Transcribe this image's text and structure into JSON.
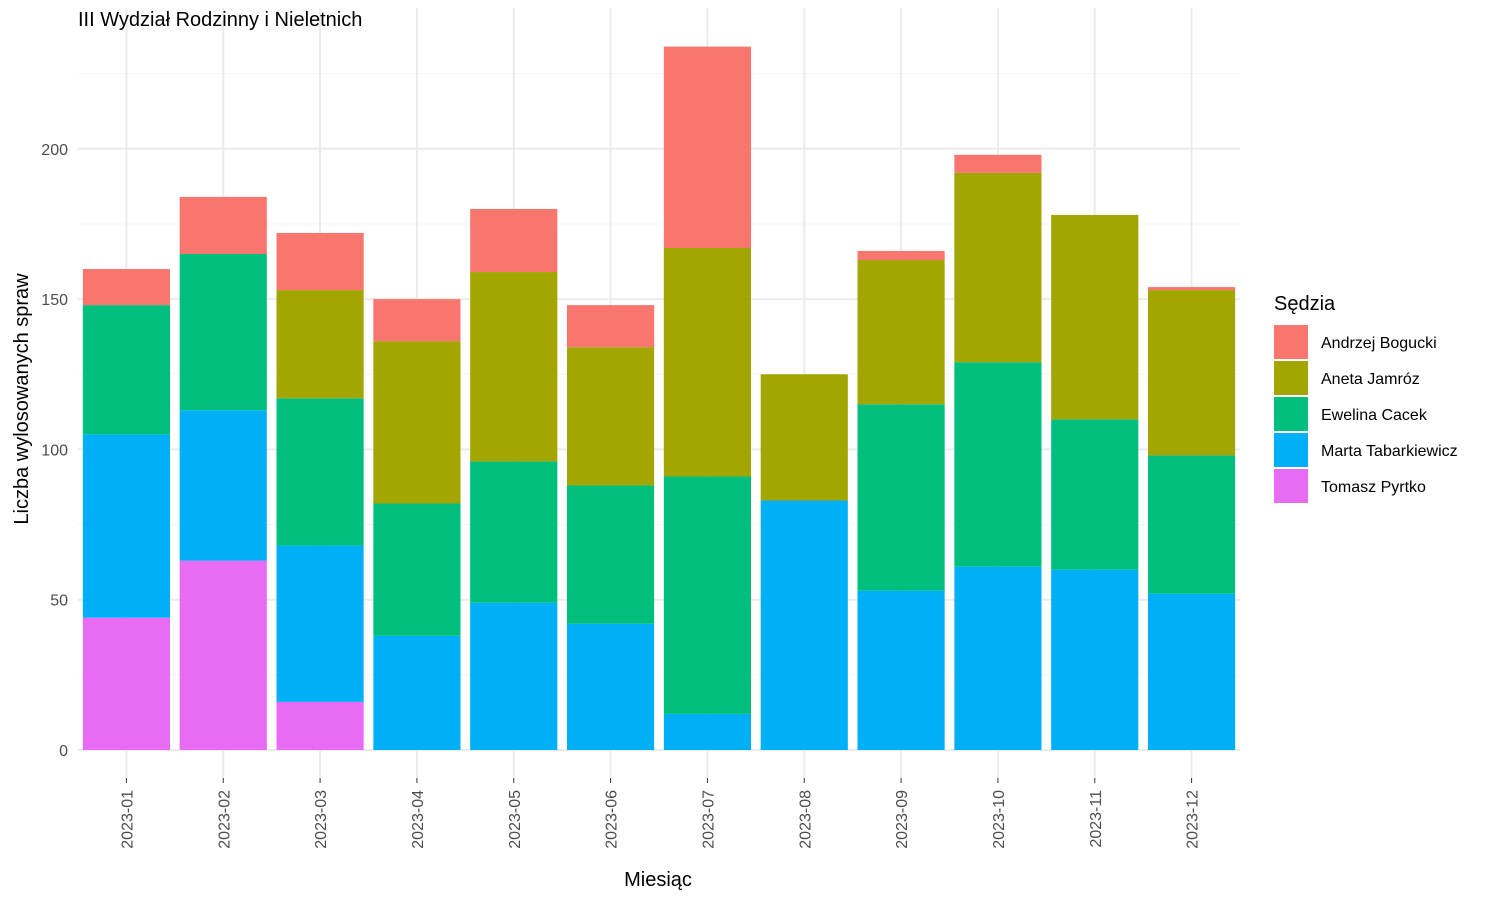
{
  "chart_data": {
    "type": "bar",
    "stacked": true,
    "title": "III Wydział Rodzinny i Nieletnich",
    "xlabel": "Miesiąc",
    "ylabel": "Liczba wylosowanych spraw",
    "ylim": [
      0,
      235
    ],
    "yticks": [
      0,
      50,
      100,
      150,
      200
    ],
    "y_tick_labels": [
      "0",
      "50",
      "100",
      "150",
      "200"
    ],
    "grid": true,
    "legend_title": "Sędzia",
    "legend_position": "right",
    "categories": [
      "2023-01",
      "2023-02",
      "2023-03",
      "2023-04",
      "2023-05",
      "2023-06",
      "2023-07",
      "2023-08",
      "2023-09",
      "2023-10",
      "2023-11",
      "2023-12"
    ],
    "stack_order_bottom_to_top": [
      "Tomasz Pyrtko",
      "Marta Tabarkiewicz",
      "Ewelina Cacek",
      "Aneta Jamróz",
      "Andrzej Bogucki"
    ],
    "series": [
      {
        "name": "Andrzej Bogucki",
        "color": "#F8766D",
        "values": [
          12,
          19,
          19,
          14,
          21,
          14,
          67,
          0,
          3,
          6,
          0,
          1
        ]
      },
      {
        "name": "Aneta Jamróz",
        "color": "#A3A500",
        "values": [
          0,
          0,
          36,
          54,
          63,
          46,
          76,
          42,
          48,
          63,
          68,
          55
        ]
      },
      {
        "name": "Ewelina Cacek",
        "color": "#00BF7D",
        "values": [
          43,
          52,
          49,
          44,
          47,
          46,
          79,
          0,
          62,
          68,
          50,
          46
        ]
      },
      {
        "name": "Marta Tabarkiewicz",
        "color": "#00B0F6",
        "values": [
          61,
          50,
          52,
          38,
          49,
          42,
          12,
          83,
          53,
          61,
          60,
          52
        ]
      },
      {
        "name": "Tomasz Pyrtko",
        "color": "#E76BF3",
        "values": [
          44,
          63,
          16,
          0,
          0,
          0,
          0,
          0,
          0,
          0,
          0,
          0
        ]
      }
    ]
  }
}
